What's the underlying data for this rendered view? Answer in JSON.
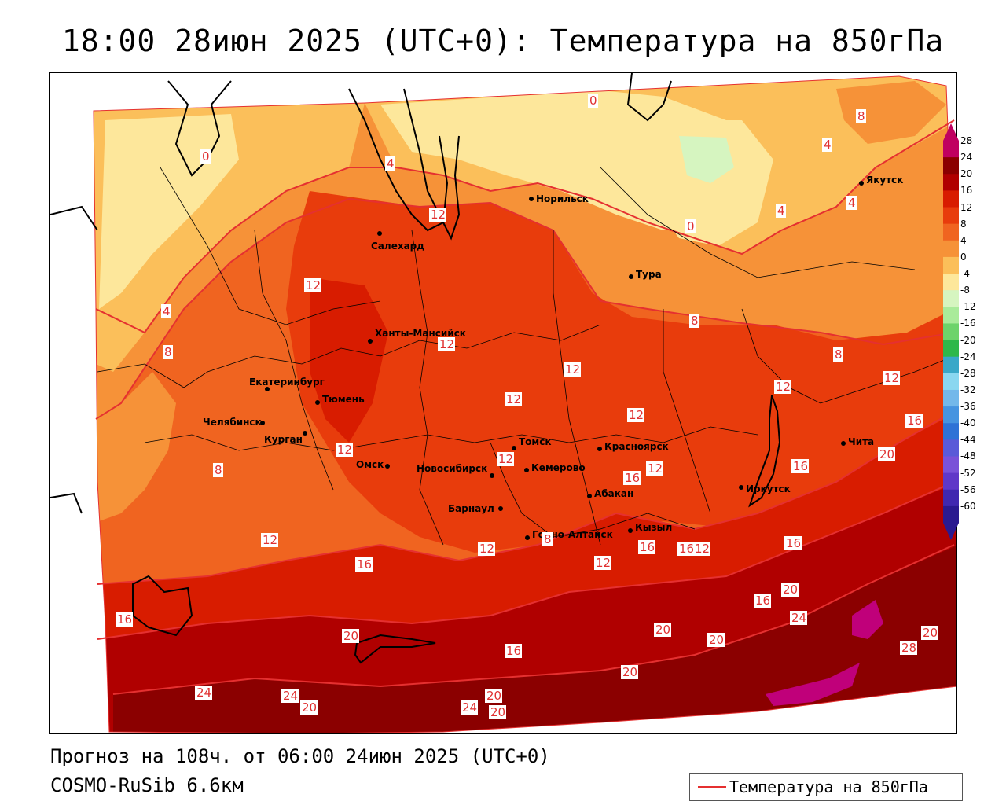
{
  "title": "18:00 28июн 2025 (UTC+0): Температура на 850гПа",
  "forecast_line": "Прогноз на 108ч. от 06:00 24июн 2025 (UTC+0)",
  "model_line": "COSMO-RuSib 6.6км",
  "legend": {
    "line_color": "#e53030",
    "label": "Температура на 850гПа"
  },
  "colorbar": {
    "labels": [
      "28",
      "24",
      "20",
      "16",
      "12",
      "8",
      "4",
      "0",
      "-4",
      "-8",
      "-12",
      "-16",
      "-20",
      "-24",
      "-28",
      "-32",
      "-36",
      "-40",
      "-44",
      "-48",
      "-52",
      "-56",
      "-60"
    ],
    "colors": [
      "#c00060",
      "#8b0000",
      "#b00000",
      "#d81c00",
      "#e83c0c",
      "#f06420",
      "#f69238",
      "#fbbf5a",
      "#fde79b",
      "#d6f5c0",
      "#a9eb9a",
      "#6dd36b",
      "#2eb84a",
      "#3aa8c8",
      "#8ad7f0",
      "#73b8ea",
      "#4694e0",
      "#2e72d6",
      "#5a5ad8",
      "#7a52d8",
      "#6038c8",
      "#4028b0",
      "#2a1a90"
    ]
  },
  "cities": [
    {
      "name": "Салехард"
    },
    {
      "name": "Норильск"
    },
    {
      "name": "Якутск"
    },
    {
      "name": "Тура"
    },
    {
      "name": "Ханты-Мансийск"
    },
    {
      "name": "Екатеринбург"
    },
    {
      "name": "Тюмень"
    },
    {
      "name": "Челябинск"
    },
    {
      "name": "Курган"
    },
    {
      "name": "Омск"
    },
    {
      "name": "Новосибирск"
    },
    {
      "name": "Томск"
    },
    {
      "name": "Кемерово"
    },
    {
      "name": "Красноярск"
    },
    {
      "name": "Абакан"
    },
    {
      "name": "Барнаул"
    },
    {
      "name": "Горно-Алтайск"
    },
    {
      "name": "Кызыл"
    },
    {
      "name": "Иркутск"
    },
    {
      "name": "Чита"
    }
  ],
  "isotherm_labels": [
    "0",
    "0",
    "0",
    "4",
    "4",
    "4",
    "4",
    "4",
    "8",
    "8",
    "8",
    "8",
    "8",
    "8",
    "12",
    "12",
    "12",
    "12",
    "12",
    "12",
    "12",
    "12",
    "12",
    "12",
    "12",
    "12",
    "12",
    "12",
    "12",
    "16",
    "16",
    "16",
    "16",
    "16",
    "16",
    "16",
    "16",
    "16",
    "16",
    "20",
    "20",
    "20",
    "20",
    "20",
    "20",
    "20",
    "20",
    "20",
    "20",
    "24",
    "24",
    "24",
    "24",
    "28"
  ]
}
